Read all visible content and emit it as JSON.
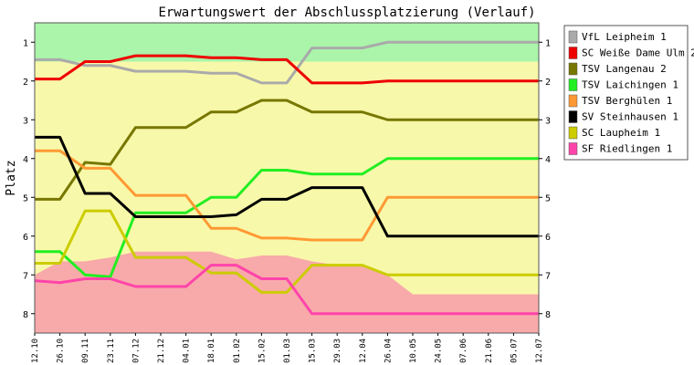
{
  "chart_data": {
    "type": "line",
    "title": "Erwartungswert der Abschlussplatzierung (Verlauf)",
    "xlabel": "",
    "ylabel": "Platz",
    "ylim": [
      0.5,
      8.5
    ],
    "y_inverted": true,
    "y_ticks": [
      1,
      2,
      3,
      4,
      5,
      6,
      7,
      8
    ],
    "x_labels": [
      "12.10",
      "26.10",
      "09.11",
      "23.11",
      "07.12",
      "21.12",
      "04.01",
      "18.01",
      "01.02",
      "15.02",
      "01.03",
      "15.03",
      "29.03",
      "12.04",
      "26.04",
      "10.05",
      "24.05",
      "07.06",
      "21.06",
      "05.07",
      "12.07"
    ],
    "legend_position": "right",
    "grid": false,
    "background_bands": {
      "promotion_color": "#aaf5aa",
      "middle_color": "#f8f8aa",
      "relegation_color": "#f8aaaa",
      "promotion_lower": [
        1.5,
        1.5,
        1.5,
        1.5,
        1.5,
        1.5,
        1.5,
        1.5,
        1.5,
        1.5,
        1.5,
        1.5,
        1.5,
        1.5,
        1.5,
        1.5,
        1.5,
        1.5,
        1.5,
        1.5,
        1.5
      ],
      "relegation_upper": [
        7.0,
        6.65,
        6.65,
        6.55,
        6.4,
        6.4,
        6.4,
        6.4,
        6.6,
        6.5,
        6.5,
        6.65,
        6.75,
        6.75,
        7.0,
        7.5,
        7.5,
        7.5,
        7.5,
        7.5,
        7.5
      ]
    },
    "series": [
      {
        "name": "VfL Leipheim 1",
        "color": "#aaaaaa",
        "values": [
          1.45,
          1.45,
          1.6,
          1.6,
          1.75,
          1.75,
          1.75,
          1.8,
          1.8,
          2.05,
          2.05,
          1.15,
          1.15,
          1.15,
          1.0,
          1.0,
          1.0,
          1.0,
          1.0,
          1.0,
          1.0
        ]
      },
      {
        "name": "SC Weiße Dame Ulm 2",
        "color": "#ee0000",
        "values": [
          1.95,
          1.95,
          1.5,
          1.5,
          1.35,
          1.35,
          1.35,
          1.4,
          1.4,
          1.45,
          1.45,
          2.05,
          2.05,
          2.05,
          2.0,
          2.0,
          2.0,
          2.0,
          2.0,
          2.0,
          2.0
        ]
      },
      {
        "name": "TSV Langenau 2",
        "color": "#777700",
        "values": [
          5.05,
          5.05,
          4.1,
          4.15,
          3.2,
          3.2,
          3.2,
          2.8,
          2.8,
          2.5,
          2.5,
          2.8,
          2.8,
          2.8,
          3.0,
          3.0,
          3.0,
          3.0,
          3.0,
          3.0,
          3.0
        ]
      },
      {
        "name": "TSV Laichingen 1",
        "color": "#22ee22",
        "values": [
          6.4,
          6.4,
          7.0,
          7.05,
          5.4,
          5.4,
          5.4,
          5.0,
          5.0,
          4.3,
          4.3,
          4.4,
          4.4,
          4.4,
          4.0,
          4.0,
          4.0,
          4.0,
          4.0,
          4.0,
          4.0
        ]
      },
      {
        "name": "TSV Berghülen 1",
        "color": "#ff9933",
        "values": [
          3.8,
          3.8,
          4.25,
          4.25,
          4.95,
          4.95,
          4.95,
          5.8,
          5.8,
          6.05,
          6.05,
          6.1,
          6.1,
          6.1,
          5.0,
          5.0,
          5.0,
          5.0,
          5.0,
          5.0,
          5.0
        ]
      },
      {
        "name": "SV Steinhausen 1",
        "color": "#000000",
        "values": [
          3.45,
          3.45,
          4.9,
          4.9,
          5.5,
          5.5,
          5.5,
          5.5,
          5.45,
          5.05,
          5.05,
          4.75,
          4.75,
          4.75,
          6.0,
          6.0,
          6.0,
          6.0,
          6.0,
          6.0,
          6.0
        ]
      },
      {
        "name": "SC Laupheim 1",
        "color": "#cccc00",
        "values": [
          6.7,
          6.7,
          5.35,
          5.35,
          6.55,
          6.55,
          6.55,
          6.95,
          6.95,
          7.45,
          7.45,
          6.75,
          6.75,
          6.75,
          7.0,
          7.0,
          7.0,
          7.0,
          7.0,
          7.0,
          7.0
        ]
      },
      {
        "name": "SF Riedlingen 1",
        "color": "#ff44aa",
        "values": [
          7.15,
          7.2,
          7.1,
          7.1,
          7.3,
          7.3,
          7.3,
          6.75,
          6.75,
          7.1,
          7.1,
          8.0,
          8.0,
          8.0,
          8.0,
          8.0,
          8.0,
          8.0,
          8.0,
          8.0,
          8.0
        ]
      }
    ]
  }
}
